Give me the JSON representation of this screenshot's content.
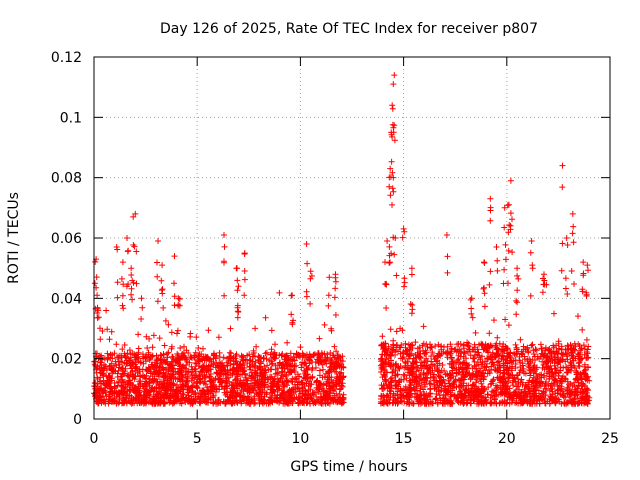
{
  "chart_data": {
    "type": "scatter",
    "title": "Day 126 of 2025, Rate Of TEC Index for receiver p807",
    "xlabel": "GPS time / hours",
    "ylabel": "ROTI / TECUs",
    "xlim": [
      0,
      25
    ],
    "ylim": [
      0,
      0.12
    ],
    "xticks": [
      0,
      5,
      10,
      15,
      20,
      25
    ],
    "xtick_labels": [
      "0",
      "5",
      "10",
      "15",
      "20",
      "25"
    ],
    "yticks": [
      0,
      0.02,
      0.04,
      0.06,
      0.08,
      0.1,
      0.12
    ],
    "ytick_labels": [
      "0",
      "0.02",
      "0.04",
      "0.06",
      "0.08",
      "0.1",
      "0.12"
    ],
    "grid": true,
    "marker": "+",
    "series": [
      {
        "name": "ROTI",
        "color": "#ff0000",
        "segments": [
          {
            "x_range": [
              0.0,
              12.1
            ],
            "typical_range": [
              0.005,
              0.022
            ],
            "peaks": [
              [
                0.1,
                0.053
              ],
              [
                0.15,
                0.041
              ],
              [
                0.2,
                0.036
              ],
              [
                1.1,
                0.057
              ],
              [
                1.4,
                0.052
              ],
              [
                1.6,
                0.06
              ],
              [
                1.8,
                0.05
              ],
              [
                1.9,
                0.067
              ],
              [
                2.0,
                0.068
              ],
              [
                2.3,
                0.04
              ],
              [
                3.1,
                0.059
              ],
              [
                3.3,
                0.051
              ],
              [
                3.9,
                0.054
              ],
              [
                4.1,
                0.04
              ],
              [
                6.3,
                0.061
              ],
              [
                6.9,
                0.05
              ],
              [
                7.3,
                0.055
              ],
              [
                7.0,
                0.044
              ],
              [
                9.6,
                0.041
              ],
              [
                10.3,
                0.058
              ],
              [
                10.5,
                0.049
              ],
              [
                11.4,
                0.047
              ],
              [
                11.7,
                0.048
              ]
            ]
          },
          {
            "x_range": [
              13.9,
              24.0
            ],
            "typical_range": [
              0.005,
              0.025
            ],
            "peaks": [
              [
                14.1,
                0.052
              ],
              [
                14.2,
                0.059
              ],
              [
                14.3,
                0.077
              ],
              [
                14.35,
                0.083
              ],
              [
                14.4,
                0.095
              ],
              [
                14.45,
                0.104
              ],
              [
                14.5,
                0.111
              ],
              [
                14.55,
                0.114
              ],
              [
                14.6,
                0.06
              ],
              [
                15.0,
                0.063
              ],
              [
                15.4,
                0.05
              ],
              [
                17.1,
                0.061
              ],
              [
                18.3,
                0.04
              ],
              [
                18.9,
                0.052
              ],
              [
                19.2,
                0.073
              ],
              [
                19.5,
                0.057
              ],
              [
                19.9,
                0.07
              ],
              [
                20.1,
                0.071
              ],
              [
                20.2,
                0.079
              ],
              [
                20.5,
                0.05
              ],
              [
                21.2,
                0.059
              ],
              [
                21.8,
                0.048
              ],
              [
                22.7,
                0.084
              ],
              [
                22.9,
                0.06
              ],
              [
                23.2,
                0.068
              ],
              [
                23.7,
                0.052
              ],
              [
                23.9,
                0.051
              ]
            ]
          }
        ]
      }
    ]
  }
}
